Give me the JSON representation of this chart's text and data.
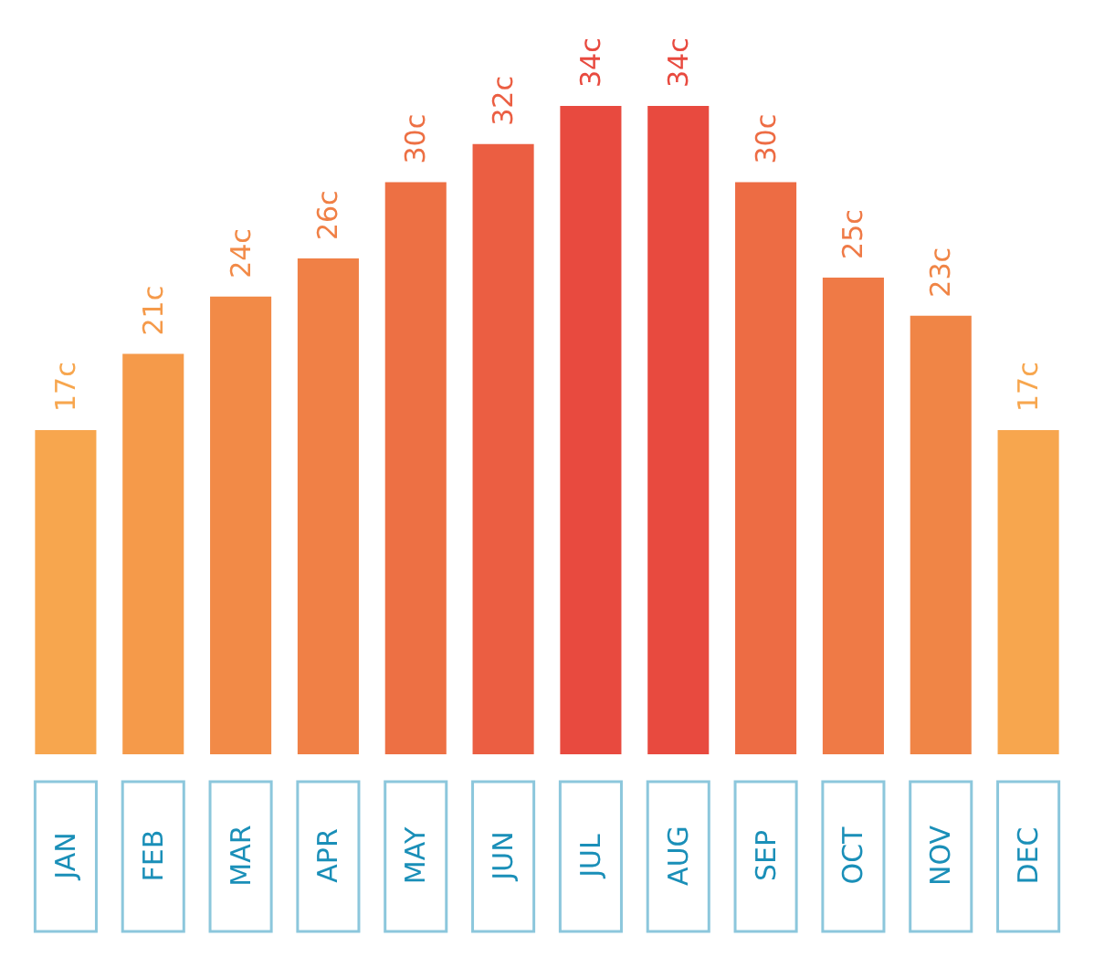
{
  "chart_data": {
    "type": "bar",
    "categories": [
      "JAN",
      "FEB",
      "MAR",
      "APR",
      "MAY",
      "JUN",
      "JUL",
      "AUG",
      "SEP",
      "OCT",
      "NOV",
      "DEC"
    ],
    "values": [
      17,
      21,
      24,
      26,
      30,
      32,
      34,
      34,
      30,
      25,
      23,
      17
    ],
    "value_labels": [
      "17c",
      "21c",
      "24c",
      "26c",
      "30c",
      "32c",
      "34c",
      "34c",
      "30c",
      "25c",
      "23c",
      "17c"
    ],
    "colors": [
      "#f7a64e",
      "#f59a4a",
      "#f28a47",
      "#f08046",
      "#ed7044",
      "#eb5e42",
      "#e84a3f",
      "#e84a3f",
      "#ed6c44",
      "#ef7a46",
      "#f08546",
      "#f7a64e"
    ]
  }
}
